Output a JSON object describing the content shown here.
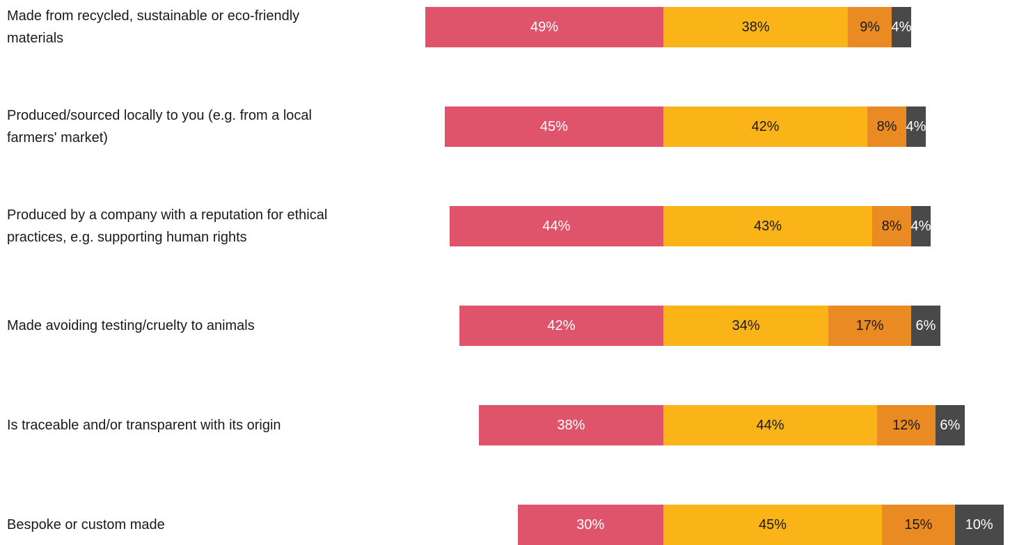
{
  "chart_data": {
    "type": "bar",
    "orientation": "horizontal",
    "stacked": true,
    "layout": "diverging",
    "categories": [
      "Made from recycled, sustainable or eco-friendly materials",
      "Produced/sourced locally to you (e.g. from a local farmers' market)",
      "Produced by a company with a reputation for ethical practices, e.g. supporting human rights",
      "Made avoiding testing/cruelty to animals",
      "Is traceable and/or transparent with its origin",
      "Bespoke or custom made"
    ],
    "series": [
      {
        "color": "#df536b",
        "text_color": "#ffffff",
        "values": [
          49,
          45,
          44,
          42,
          38,
          30
        ]
      },
      {
        "color": "#fab418",
        "text_color": "#1a1a1a",
        "values": [
          38,
          42,
          43,
          34,
          44,
          45
        ]
      },
      {
        "color": "#e98a23",
        "text_color": "#1a1a1a",
        "values": [
          9,
          8,
          8,
          17,
          12,
          15
        ]
      },
      {
        "color": "#494949",
        "text_color": "#ffffff",
        "values": [
          4,
          4,
          4,
          6,
          6,
          10
        ]
      }
    ],
    "value_suffix": "%",
    "data_labels": true,
    "legend": "none",
    "grid": false,
    "title": "",
    "xlabel": "",
    "ylabel": ""
  }
}
